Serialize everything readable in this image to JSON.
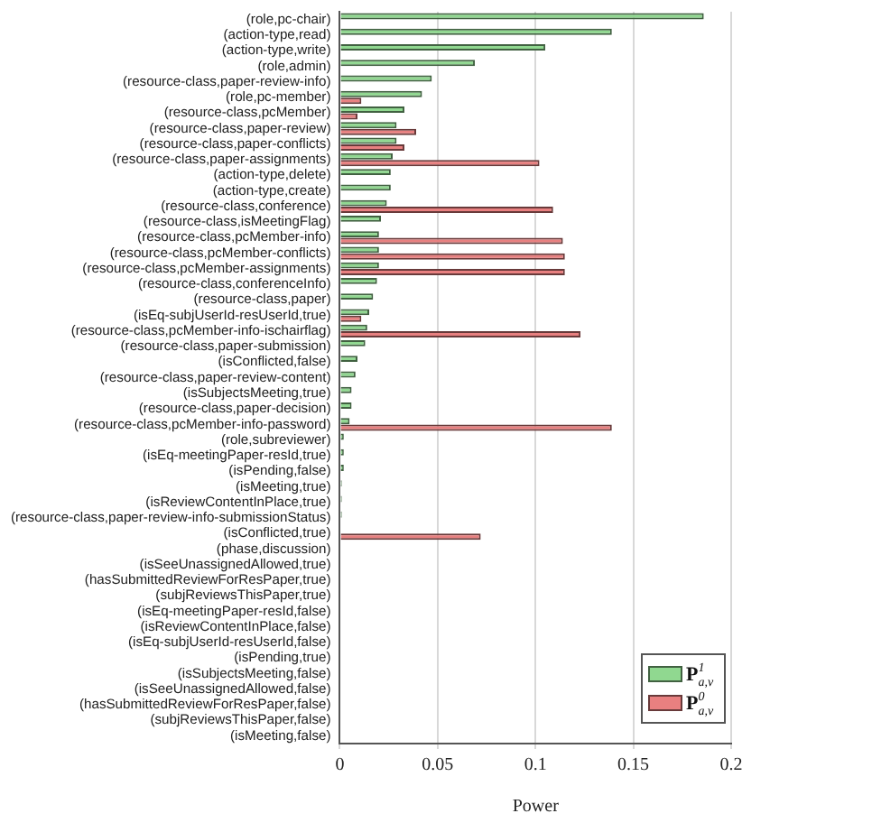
{
  "chart_data": {
    "type": "bar",
    "orientation": "horizontal",
    "xlabel": "Power",
    "categories": [
      "(role,pc-chair)",
      "(action-type,read)",
      "(action-type,write)",
      "(role,admin)",
      "(resource-class,paper-review-info)",
      "(role,pc-member)",
      "(resource-class,pcMember)",
      "(resource-class,paper-review)",
      "(resource-class,paper-conflicts)",
      "(resource-class,paper-assignments)",
      "(action-type,delete)",
      "(action-type,create)",
      "(resource-class,conference)",
      "(resource-class,isMeetingFlag)",
      "(resource-class,pcMember-info)",
      "(resource-class,pcMember-conflicts)",
      "(resource-class,pcMember-assignments)",
      "(resource-class,conferenceInfo)",
      "(resource-class,paper)",
      "(isEq-subjUserId-resUserId,true)",
      "(resource-class,pcMember-info-ischairflag)",
      "(resource-class,paper-submission)",
      "(isConflicted,false)",
      "(resource-class,paper-review-content)",
      "(isSubjectsMeeting,true)",
      "(resource-class,paper-decision)",
      "(resource-class,pcMember-info-password)",
      "(role,subreviewer)",
      "(isEq-meetingPaper-resId,true)",
      "(isPending,false)",
      "(isMeeting,true)",
      "(isReviewContentInPlace,true)",
      "(resource-class,paper-review-info-submissionStatus)",
      "(isConflicted,true)",
      "(phase,discussion)",
      "(isSeeUnassignedAllowed,true)",
      "(hasSubmittedReviewForResPaper,true)",
      "(subjReviewsThisPaper,true)",
      "(isEq-meetingPaper-resId,false)",
      "(isReviewContentInPlace,false)",
      "(isEq-subjUserId-resUserId,false)",
      "(isPending,true)",
      "(isSubjectsMeeting,false)",
      "(isSeeUnassignedAllowed,false)",
      "(hasSubmittedReviewForResPaper,false)",
      "(subjReviewsThisPaper,false)",
      "(isMeeting,false)"
    ],
    "series": [
      {
        "name": "P$^{1}$$_{a,v}$",
        "color": "#90d890",
        "values": [
          0.186,
          0.139,
          0.105,
          0.069,
          0.047,
          0.042,
          0.033,
          0.029,
          0.029,
          0.027,
          0.026,
          0.026,
          0.024,
          0.021,
          0.02,
          0.02,
          0.02,
          0.019,
          0.017,
          0.015,
          0.014,
          0.013,
          0.009,
          0.008,
          0.006,
          0.006,
          0.005,
          0.002,
          0.002,
          0.002,
          0.001,
          0.001,
          0.001,
          0,
          0,
          0,
          0,
          0,
          0,
          0,
          0,
          0,
          0,
          0,
          0,
          0,
          0
        ]
      },
      {
        "name": "P$^{0}$$_{a,v}$",
        "color": "#e88080",
        "values": [
          0,
          0,
          0,
          0,
          0,
          0.011,
          0.009,
          0.039,
          0.033,
          0.102,
          0,
          0,
          0.109,
          0,
          0.114,
          0.115,
          0.115,
          0,
          0,
          0.011,
          0.123,
          0,
          0,
          0,
          0,
          0,
          0.139,
          0,
          0,
          0,
          0,
          0,
          0,
          0.072,
          0,
          0,
          0,
          0,
          0,
          0,
          0,
          0,
          0,
          0,
          0,
          0,
          0
        ]
      }
    ],
    "xlim": [
      0,
      0.2
    ],
    "xticks": [
      0,
      0.05,
      0.1,
      0.15,
      0.2
    ],
    "grid": "x",
    "legend": "bottom right"
  }
}
